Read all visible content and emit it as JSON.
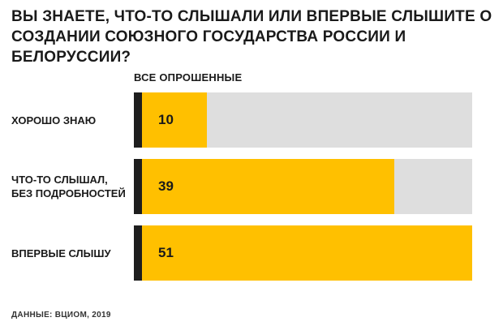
{
  "chart_data": {
    "type": "bar",
    "orientation": "horizontal",
    "title": "ВЫ ЗНАЕТЕ, ЧТО-ТО СЛЫШАЛИ ИЛИ ВПЕРВЫЕ СЛЫШИТЕ О СОЗДАНИИ СОЮЗНОГО ГОСУДАРСТВА РОССИИ И БЕЛОРУССИИ?",
    "column_header": "ВСЕ ОПРОШЕННЫЕ",
    "categories": [
      "ХОРОШО ЗНАЮ",
      "ЧТО-ТО СЛЫШАЛ, БЕЗ ПОДРОБНОСТЕЙ",
      "ВПЕРВЫЕ СЛЫШУ"
    ],
    "values": [
      10,
      39,
      51
    ],
    "xlim": [
      0,
      51
    ],
    "grid": false,
    "legend": "none",
    "source": "ДАННЫЕ: ВЦИОМ, 2019"
  },
  "colors": {
    "bar": "#ffc000",
    "track": "#dedede",
    "cap": "#1e1e1e"
  }
}
